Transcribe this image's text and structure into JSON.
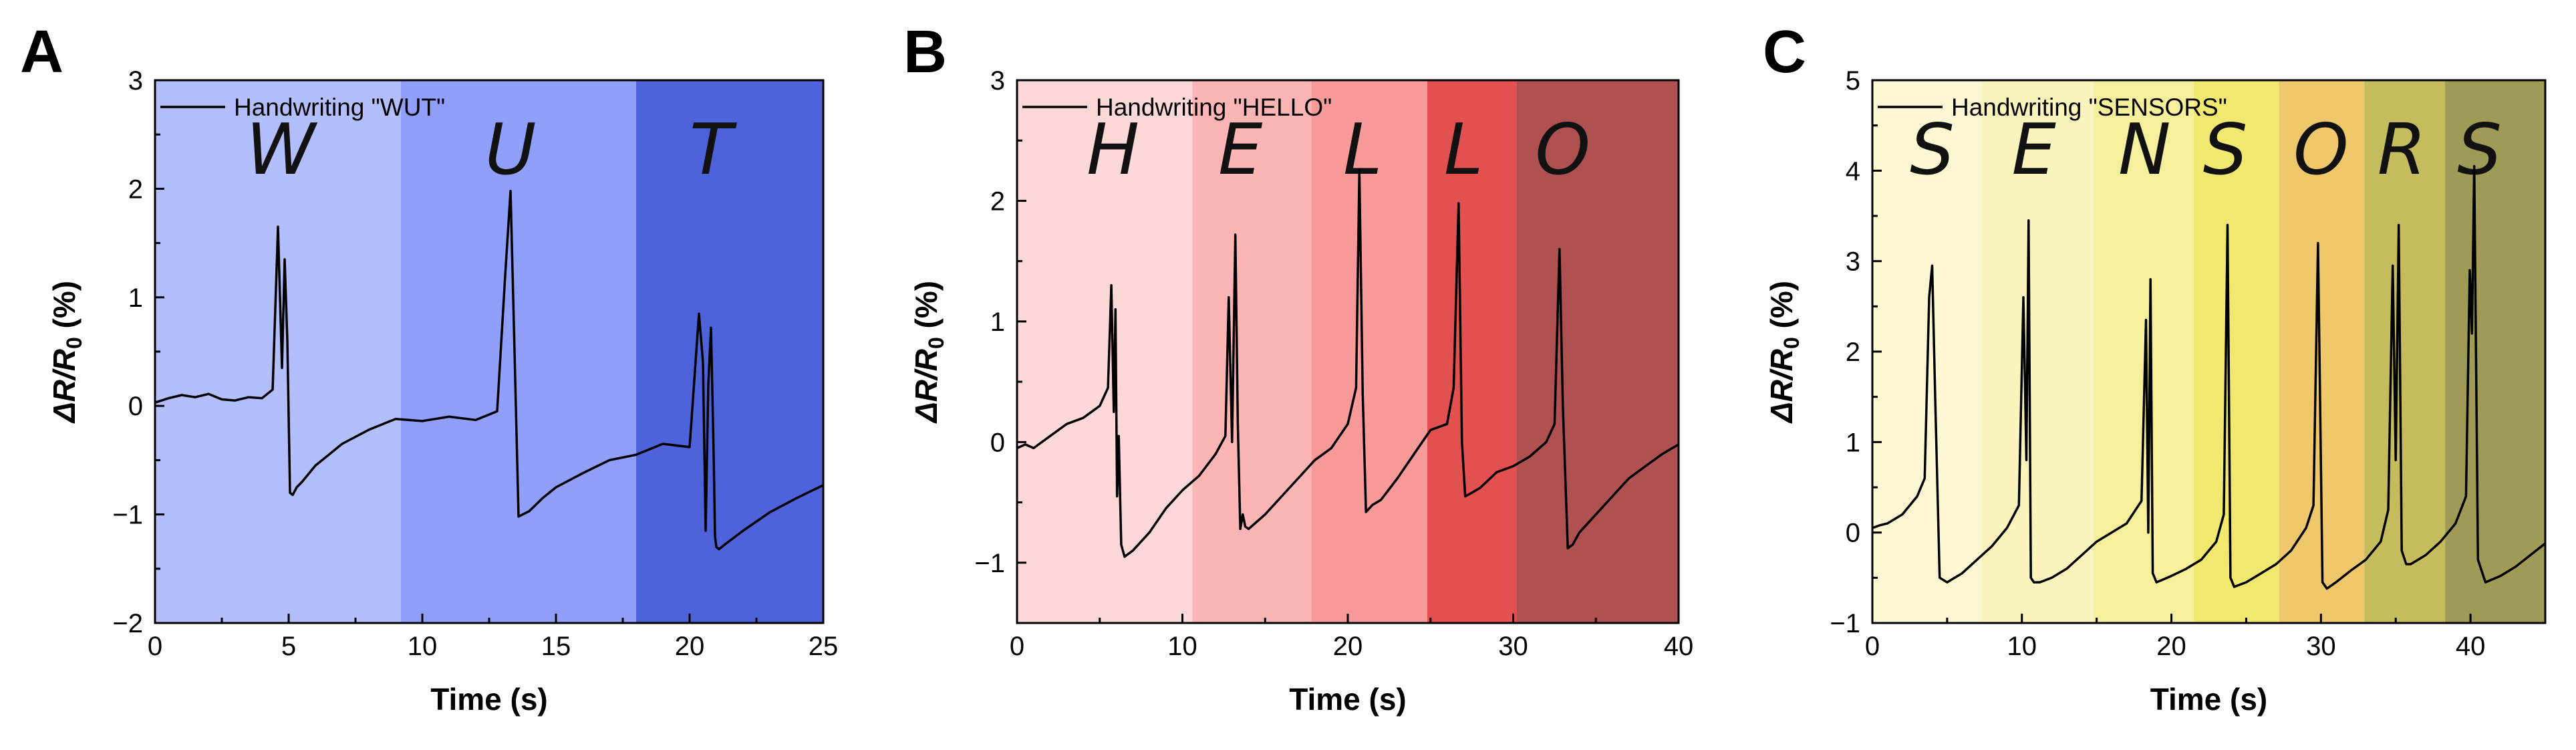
{
  "chart_data": [
    {
      "type": "line",
      "panel": "A",
      "legend": "Handwriting \"WUT\"",
      "legend_location": "top-left",
      "xlabel": "Time (s)",
      "ylabel_main": "ΔR/R",
      "ylabel_sub": "0",
      "ylabel_unit": " (%)",
      "xlim": [
        0,
        25
      ],
      "ylim": [
        -2,
        3
      ],
      "xticks": [
        0,
        5,
        10,
        15,
        20,
        25
      ],
      "yticks": [
        -2,
        -1,
        0,
        1,
        2,
        3
      ],
      "xtick_labels": [
        "0",
        "5",
        "10",
        "15",
        "20",
        "25"
      ],
      "ytick_labels": [
        "−2",
        "−1",
        "0",
        "1",
        "2",
        "3"
      ],
      "bands": [
        {
          "x0": 0,
          "x1": 9.2,
          "color": "#b3bffc"
        },
        {
          "x0": 9.2,
          "x1": 18,
          "color": "#8f9ffa"
        },
        {
          "x0": 18,
          "x1": 25,
          "color": "#4e63da"
        }
      ],
      "letters": [
        {
          "text": "W",
          "x": 4.7
        },
        {
          "text": "U",
          "x": 13.3
        },
        {
          "text": "T",
          "x": 20.8
        }
      ],
      "series": [
        {
          "name": "Handwriting \"WUT\"",
          "x": [
            0,
            0.5,
            1.0,
            1.5,
            2.0,
            2.5,
            3.0,
            3.5,
            4.0,
            4.4,
            4.6,
            4.75,
            4.85,
            4.95,
            5.05,
            5.15,
            5.3,
            5.5,
            6.0,
            6.5,
            7.0,
            8.0,
            9.0,
            10.0,
            11.0,
            12.0,
            12.8,
            13.1,
            13.3,
            13.45,
            13.6,
            14.0,
            14.5,
            15.0,
            16.0,
            17.0,
            18.0,
            19.0,
            20.0,
            20.35,
            20.5,
            20.6,
            20.7,
            20.8,
            20.9,
            20.95,
            21.0,
            21.1,
            21.3,
            22.0,
            23.0,
            24.0,
            25.0
          ],
          "y": [
            0.03,
            0.07,
            0.1,
            0.08,
            0.11,
            0.06,
            0.05,
            0.08,
            0.07,
            0.15,
            1.65,
            0.35,
            1.35,
            0.6,
            -0.8,
            -0.82,
            -0.75,
            -0.7,
            -0.55,
            -0.45,
            -0.35,
            -0.22,
            -0.12,
            -0.14,
            -0.1,
            -0.13,
            -0.05,
            1.2,
            1.98,
            0.5,
            -1.02,
            -0.97,
            -0.85,
            -0.75,
            -0.62,
            -0.5,
            -0.45,
            -0.35,
            -0.38,
            0.85,
            0.4,
            -1.15,
            0.2,
            0.72,
            -0.45,
            -1.2,
            -1.3,
            -1.32,
            -1.28,
            -1.15,
            -0.98,
            -0.85,
            -0.73
          ]
        }
      ]
    },
    {
      "type": "line",
      "panel": "B",
      "legend": "Handwriting \"HELLO\"",
      "legend_location": "top-left",
      "xlabel": "Time (s)",
      "ylabel_main": "ΔR/R",
      "ylabel_sub": "0",
      "ylabel_unit": " (%)",
      "xlim": [
        0,
        40
      ],
      "ylim": [
        -1.5,
        3
      ],
      "xticks": [
        0,
        10,
        20,
        30,
        40
      ],
      "yticks": [
        -1,
        0,
        1,
        2,
        3
      ],
      "xtick_labels": [
        "0",
        "10",
        "20",
        "30",
        "40"
      ],
      "ytick_labels": [
        "−1",
        "0",
        "1",
        "2",
        "3"
      ],
      "bands": [
        {
          "x0": 0,
          "x1": 10.6,
          "color": "#fdd8d8"
        },
        {
          "x0": 10.6,
          "x1": 17.8,
          "color": "#fbb5b5"
        },
        {
          "x0": 17.8,
          "x1": 24.8,
          "color": "#f99a9a"
        },
        {
          "x0": 24.8,
          "x1": 30.2,
          "color": "#e35050"
        },
        {
          "x0": 30.2,
          "x1": 40,
          "color": "#b05151"
        }
      ],
      "letters": [
        {
          "text": "H",
          "x": 5.8
        },
        {
          "text": "E",
          "x": 13.5
        },
        {
          "text": "L",
          "x": 20.9
        },
        {
          "text": "L",
          "x": 27.0
        },
        {
          "text": "O",
          "x": 33.0
        }
      ],
      "series": [
        {
          "name": "Handwriting \"HELLO\"",
          "x": [
            0,
            0.5,
            1.0,
            2.0,
            3.0,
            4.0,
            5.0,
            5.5,
            5.7,
            5.85,
            5.95,
            6.05,
            6.15,
            6.3,
            6.5,
            7.0,
            8.0,
            9.0,
            10.0,
            11.0,
            12.0,
            12.6,
            12.8,
            13.0,
            13.2,
            13.35,
            13.5,
            13.65,
            13.8,
            14.0,
            15.0,
            16.0,
            17.0,
            18.0,
            19.0,
            20.0,
            20.5,
            20.7,
            20.9,
            21.1,
            21.5,
            22.0,
            23.0,
            24.0,
            25.0,
            26.0,
            26.4,
            26.7,
            26.9,
            27.1,
            27.5,
            28.0,
            29.0,
            30.0,
            31.0,
            32.0,
            32.5,
            32.8,
            33.0,
            33.3,
            33.6,
            34.0,
            35.0,
            36.0,
            37.0,
            38.0,
            39.0,
            40.0
          ],
          "y": [
            -0.05,
            -0.02,
            -0.05,
            0.05,
            0.15,
            0.2,
            0.3,
            0.45,
            1.3,
            0.25,
            1.1,
            -0.45,
            0.05,
            -0.85,
            -0.95,
            -0.9,
            -0.75,
            -0.55,
            -0.4,
            -0.28,
            -0.1,
            0.05,
            1.2,
            0.0,
            1.72,
            0.15,
            -0.72,
            -0.6,
            -0.7,
            -0.72,
            -0.6,
            -0.45,
            -0.3,
            -0.15,
            -0.05,
            0.15,
            0.45,
            2.25,
            0.4,
            -0.58,
            -0.52,
            -0.48,
            -0.3,
            -0.1,
            0.1,
            0.15,
            0.45,
            1.98,
            0.0,
            -0.45,
            -0.42,
            -0.38,
            -0.25,
            -0.2,
            -0.12,
            0.0,
            0.15,
            1.6,
            0.3,
            -0.88,
            -0.85,
            -0.75,
            -0.6,
            -0.45,
            -0.3,
            -0.2,
            -0.1,
            -0.02
          ]
        }
      ]
    },
    {
      "type": "line",
      "panel": "C",
      "legend": "Handwriting \"SENSORS\"",
      "legend_location": "top-left",
      "xlabel": "Time (s)",
      "ylabel_main": "ΔR/R",
      "ylabel_sub": "0",
      "ylabel_unit": " (%)",
      "xlim": [
        0,
        45
      ],
      "ylim": [
        -1,
        5
      ],
      "xticks": [
        0,
        10,
        20,
        30,
        40
      ],
      "yticks": [
        -1,
        0,
        1,
        2,
        3,
        4,
        5
      ],
      "xtick_labels": [
        "0",
        "10",
        "20",
        "30",
        "40"
      ],
      "ytick_labels": [
        "−1",
        "0",
        "1",
        "2",
        "3",
        "4",
        "5"
      ],
      "bands": [
        {
          "x0": 0,
          "x1": 7.3,
          "color": "#fdf7d4"
        },
        {
          "x0": 7.3,
          "x1": 14.8,
          "color": "#fbf5bd"
        },
        {
          "x0": 14.8,
          "x1": 21.5,
          "color": "#f6f09c"
        },
        {
          "x0": 21.5,
          "x1": 27.2,
          "color": "#f1e86f"
        },
        {
          "x0": 27.2,
          "x1": 32.9,
          "color": "#f0c86c"
        },
        {
          "x0": 32.9,
          "x1": 38.3,
          "color": "#c5bd5d"
        },
        {
          "x0": 38.3,
          "x1": 45,
          "color": "#a09a57"
        }
      ],
      "letters": [
        {
          "text": "S",
          "x": 4.0
        },
        {
          "text": "E",
          "x": 10.8
        },
        {
          "text": "N",
          "x": 18.2
        },
        {
          "text": "S",
          "x": 23.6
        },
        {
          "text": "O",
          "x": 30.0
        },
        {
          "text": "R",
          "x": 35.4
        },
        {
          "text": "S",
          "x": 40.6
        }
      ],
      "series": [
        {
          "name": "Handwriting \"SENSORS\"",
          "x": [
            0,
            0.5,
            1.0,
            2.0,
            3.0,
            3.5,
            3.8,
            4.0,
            4.2,
            4.5,
            5.0,
            6.0,
            7.0,
            8.0,
            9.0,
            9.8,
            10.1,
            10.3,
            10.45,
            10.6,
            10.8,
            11.2,
            12.0,
            13.0,
            14.0,
            15.0,
            16.0,
            17.0,
            18.0,
            18.3,
            18.45,
            18.6,
            18.75,
            19.0,
            20.0,
            21.0,
            22.0,
            23.0,
            23.5,
            23.75,
            23.95,
            24.2,
            25.0,
            26.0,
            27.0,
            28.0,
            29.0,
            29.5,
            29.8,
            30.1,
            30.4,
            31.0,
            32.0,
            33.0,
            34.0,
            34.5,
            34.8,
            35.0,
            35.2,
            35.4,
            35.7,
            36.0,
            37.0,
            38.0,
            39.0,
            39.7,
            39.95,
            40.1,
            40.25,
            40.5,
            41.0,
            42.0,
            43.0,
            44.0,
            45.0
          ],
          "y": [
            0.05,
            0.08,
            0.1,
            0.2,
            0.4,
            0.6,
            2.6,
            2.95,
            1.5,
            -0.5,
            -0.55,
            -0.45,
            -0.3,
            -0.15,
            0.05,
            0.3,
            2.6,
            0.8,
            3.45,
            -0.5,
            -0.55,
            -0.55,
            -0.5,
            -0.4,
            -0.25,
            -0.1,
            0.0,
            0.1,
            0.35,
            2.35,
            0.0,
            2.8,
            -0.45,
            -0.55,
            -0.48,
            -0.4,
            -0.3,
            -0.1,
            0.2,
            3.4,
            -0.5,
            -0.6,
            -0.55,
            -0.45,
            -0.35,
            -0.2,
            0.05,
            0.3,
            3.2,
            -0.55,
            -0.62,
            -0.55,
            -0.42,
            -0.3,
            -0.1,
            0.25,
            2.95,
            0.8,
            3.4,
            -0.2,
            -0.35,
            -0.35,
            -0.25,
            -0.1,
            0.1,
            0.4,
            2.9,
            2.2,
            4.05,
            -0.3,
            -0.55,
            -0.48,
            -0.38,
            -0.25,
            -0.12
          ]
        }
      ]
    }
  ]
}
